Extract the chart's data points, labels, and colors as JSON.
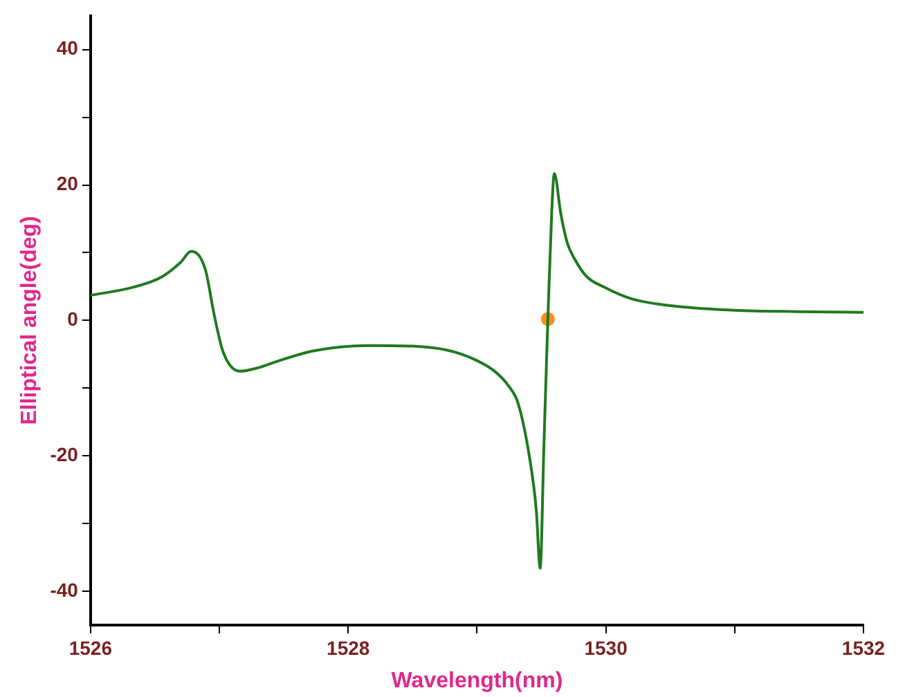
{
  "chart_data": {
    "type": "line",
    "xlabel": "Wavelength(nm)",
    "ylabel": "Elliptical angle(deg)",
    "xlim": [
      1526,
      1532
    ],
    "ylim": [
      -45,
      45
    ],
    "xticks": [
      1526,
      {
        "value": 1527,
        "label": null
      },
      1528,
      {
        "value": 1529,
        "label": null
      },
      1530,
      {
        "value": 1531,
        "label": null
      },
      1532
    ],
    "yticks": [
      -40,
      {
        "value": -30,
        "label": null
      },
      -20,
      {
        "value": -10,
        "label": null
      },
      0,
      {
        "value": 10,
        "label": null
      },
      20,
      {
        "value": 30,
        "label": null
      },
      40
    ],
    "grid": false,
    "legend": false,
    "marker": "none",
    "line_style": "solid",
    "series": [
      {
        "color": "#1f7a1f",
        "x": [
          1526,
          1526.33,
          1526.55,
          1526.7,
          1526.78,
          1526.89,
          1526.96,
          1527.03,
          1527.16,
          1527.3,
          1527.44,
          1527.73,
          1528.18,
          1528.5,
          1528.77,
          1528.95,
          1529.13,
          1529.25,
          1529.32,
          1529.41,
          1529.46,
          1529.49,
          1529.52,
          1529.55,
          1529.58,
          1529.6,
          1529.65,
          1529.7,
          1529.76,
          1529.85,
          1529.99,
          1530.2,
          1530.54,
          1531,
          1531.5,
          1532
        ],
        "values": [
          3.7,
          4.9,
          6.4,
          8.6,
          10.2,
          7.6,
          0.8,
          -4.7,
          -7.5,
          -7.0,
          -6.1,
          -4.5,
          -3.7,
          -3.8,
          -4.4,
          -5.5,
          -7.4,
          -9.8,
          -12.3,
          -20.5,
          -28,
          -36.6,
          -18,
          0.2,
          16,
          21.7,
          15.8,
          11.5,
          9,
          6.5,
          4.9,
          3.2,
          2.1,
          1.5,
          1.3,
          1.2
        ]
      },
      {
        "type": "scatter",
        "color": "#ff8c1a",
        "marker": "circle",
        "x": [
          1529.55
        ],
        "values": [
          0.2
        ]
      }
    ]
  }
}
